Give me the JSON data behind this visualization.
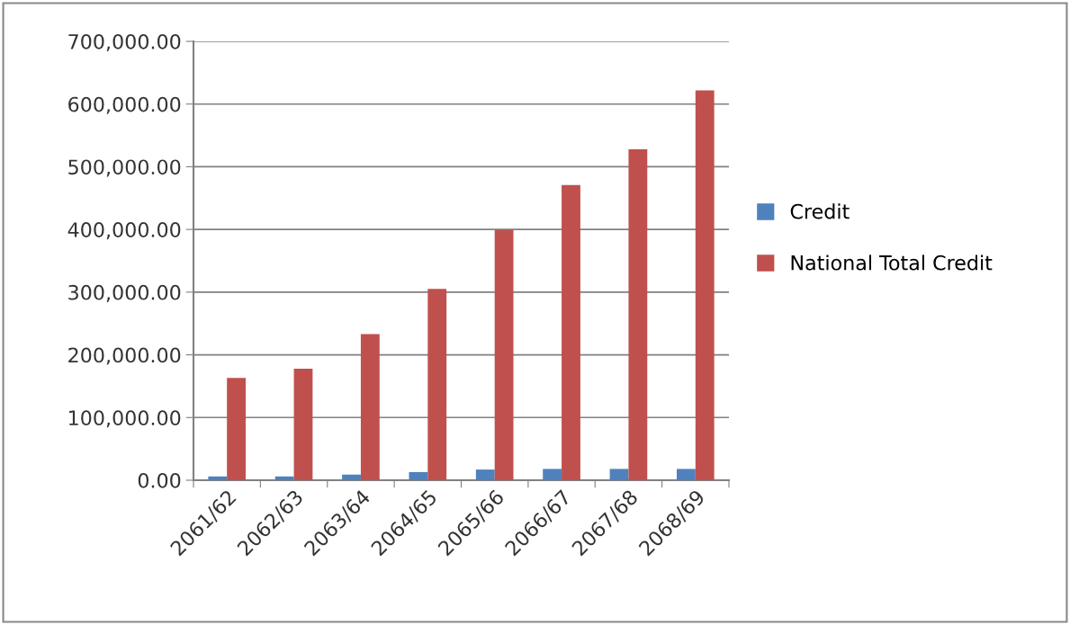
{
  "chart_data": {
    "type": "bar",
    "categories": [
      "2061/62",
      "2062/63",
      "2063/64",
      "2064/65",
      "2065/66",
      "2066/67",
      "2067/68",
      "2068/69"
    ],
    "series": [
      {
        "name": "Credit",
        "color": "#4f81bd",
        "values": [
          6000,
          6000,
          9000,
          13000,
          17000,
          18000,
          18000,
          18000
        ]
      },
      {
        "name": "National Total Credit",
        "color": "#c0504d",
        "values": [
          163000,
          178000,
          233000,
          305000,
          399000,
          471000,
          528000,
          622000
        ]
      }
    ],
    "ylim": [
      0,
      700000
    ],
    "yticks": [
      {
        "value": 0,
        "label": "0.00"
      },
      {
        "value": 100000,
        "label": "100,000.00"
      },
      {
        "value": 200000,
        "label": "200,000.00"
      },
      {
        "value": 300000,
        "label": "300,000.00"
      },
      {
        "value": 400000,
        "label": "400,000.00"
      },
      {
        "value": 500000,
        "label": "500,000.00"
      },
      {
        "value": 600000,
        "label": "600,000.00"
      },
      {
        "value": 700000,
        "label": "700,000.00"
      }
    ],
    "grid": "y",
    "legend": "right"
  }
}
